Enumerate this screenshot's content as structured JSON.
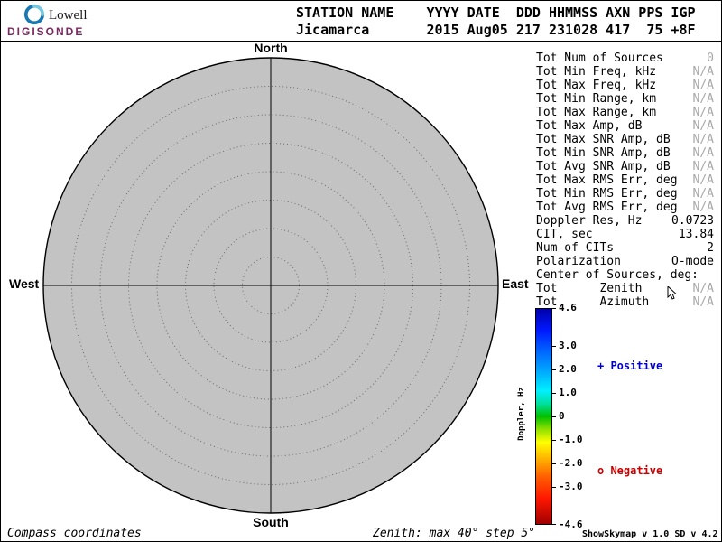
{
  "logo": {
    "line1": "Lowell",
    "line2": "DIGISONDE"
  },
  "header": {
    "line1": "STATION NAME    YYYY DATE  DDD HHMMSS AXN PPS IGP",
    "line2": "Jicamarca       2015 Aug05 217 231028 417  75 +8F"
  },
  "compass": {
    "north": "North",
    "south": "South",
    "west": "West",
    "east": "East"
  },
  "stats": {
    "rows": [
      {
        "label": "Tot Num of Sources",
        "value": "0",
        "muted": true
      },
      {
        "label": "Tot Min Freq, kHz",
        "value": "N/A",
        "muted": true
      },
      {
        "label": "Tot Max Freq, kHz",
        "value": "N/A",
        "muted": true
      },
      {
        "label": "Tot Min Range, km",
        "value": "N/A",
        "muted": true
      },
      {
        "label": "Tot Max Range, km",
        "value": "N/A",
        "muted": true
      },
      {
        "label": "Tot Max Amp, dB",
        "value": "N/A",
        "muted": true
      },
      {
        "label": "Tot Max SNR Amp, dB",
        "value": "N/A",
        "muted": true
      },
      {
        "label": "Tot Min SNR Amp, dB",
        "value": "N/A",
        "muted": true
      },
      {
        "label": "Tot Avg SNR Amp, dB",
        "value": "N/A",
        "muted": true
      },
      {
        "label": "Tot Max RMS Err, deg",
        "value": "N/A",
        "muted": true
      },
      {
        "label": "Tot Min RMS Err, deg",
        "value": "N/A",
        "muted": true
      },
      {
        "label": "Tot Avg RMS Err, deg",
        "value": "N/A",
        "muted": true
      },
      {
        "label": "Doppler Res, Hz",
        "value": "0.0723",
        "muted": false
      },
      {
        "label": "CIT, sec",
        "value": "13.84",
        "muted": false
      },
      {
        "label": "Num of CITs",
        "value": "2",
        "muted": false
      },
      {
        "label": "Polarization",
        "value": "O-mode",
        "muted": false
      },
      {
        "label": "Center of Sources, deg:",
        "value": "",
        "muted": false
      },
      {
        "label": "Tot      Zenith",
        "value": "N/A",
        "muted": true
      },
      {
        "label": "Tot      Azimuth",
        "value": "N/A",
        "muted": true
      }
    ]
  },
  "colorbar": {
    "title": "Doppler, Hz",
    "min": -4.6,
    "max": 4.6,
    "ticks": [
      4.6,
      3.0,
      2.0,
      1.0,
      0,
      -1.0,
      -2.0,
      -3.0,
      -4.6
    ],
    "tick_labels": [
      "4.6",
      "3.0",
      "2.0",
      "1.0",
      "0",
      "-1.0",
      "-2.0",
      "-3.0",
      "-4.6"
    ],
    "positive_label": "+ Positive",
    "negative_label": "o Negative",
    "positive_color": "#0000cc",
    "negative_color": "#cc0000"
  },
  "footer": {
    "left": "Compass coordinates",
    "center": "Zenith: max 40°  step 5°",
    "right": "ShowSkymap v 1.0  SD v 4.2"
  },
  "chart_data": {
    "type": "scatter",
    "title": "Digisonde skymap, compass coordinates",
    "points": [],
    "num_sources": 0,
    "zenith_max_deg": 40,
    "zenith_step_deg": 5,
    "rings": 8,
    "circle_fill": "#c3c3c3",
    "colorbar": {
      "label": "Doppler, Hz",
      "range": [
        -4.6,
        4.6
      ],
      "zero_color": "green"
    }
  }
}
